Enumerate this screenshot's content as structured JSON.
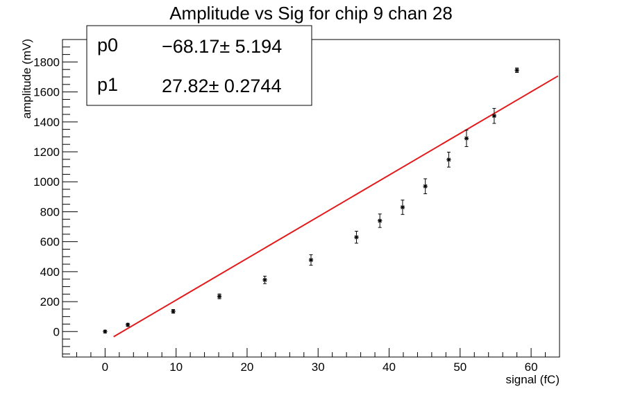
{
  "chart_data": {
    "type": "scatter",
    "title": "Amplitude vs Sig for chip 9 chan 28",
    "xlabel": "signal (fC)",
    "ylabel": "amplitude (mV)",
    "xlim": [
      -6,
      64
    ],
    "ylim": [
      -170,
      1950
    ],
    "xticks": [
      0,
      10,
      20,
      30,
      40,
      50,
      60
    ],
    "xtick_labels": [
      "0",
      "10",
      "20",
      "30",
      "40",
      "50",
      "60"
    ],
    "yticks": [
      0,
      200,
      400,
      600,
      800,
      1000,
      1200,
      1400,
      1600,
      1800
    ],
    "ytick_labels": [
      "0",
      "200",
      "400",
      "600",
      "800",
      "1000",
      "1200",
      "1400",
      "1600",
      "1800"
    ],
    "grid": false,
    "series": [
      {
        "type": "scatter-errorbar",
        "color": "#000000",
        "points": [
          {
            "x": 0.0,
            "y": 0,
            "err": 8
          },
          {
            "x": 3.2,
            "y": 45,
            "err": 10
          },
          {
            "x": 9.6,
            "y": 135,
            "err": 12
          },
          {
            "x": 16.1,
            "y": 235,
            "err": 16
          },
          {
            "x": 22.5,
            "y": 345,
            "err": 25
          },
          {
            "x": 29.0,
            "y": 478,
            "err": 35
          },
          {
            "x": 35.4,
            "y": 630,
            "err": 40
          },
          {
            "x": 38.7,
            "y": 740,
            "err": 45
          },
          {
            "x": 41.9,
            "y": 830,
            "err": 48
          },
          {
            "x": 45.1,
            "y": 970,
            "err": 50
          },
          {
            "x": 48.4,
            "y": 1148,
            "err": 50
          },
          {
            "x": 50.9,
            "y": 1290,
            "err": 55
          },
          {
            "x": 54.8,
            "y": 1440,
            "err": 50
          },
          {
            "x": 58.0,
            "y": 1745,
            "err": 15
          }
        ]
      },
      {
        "type": "fit-line",
        "color": "#e31a1c",
        "p0": -68.17,
        "p1": 27.82,
        "x_range": [
          1.2,
          63.8
        ]
      }
    ],
    "stats_box": {
      "position": "top-left",
      "entries": [
        {
          "label": "p0",
          "value": "−68.17± 5.194"
        },
        {
          "label": "p1",
          "value": "27.82± 0.2744"
        }
      ]
    }
  }
}
